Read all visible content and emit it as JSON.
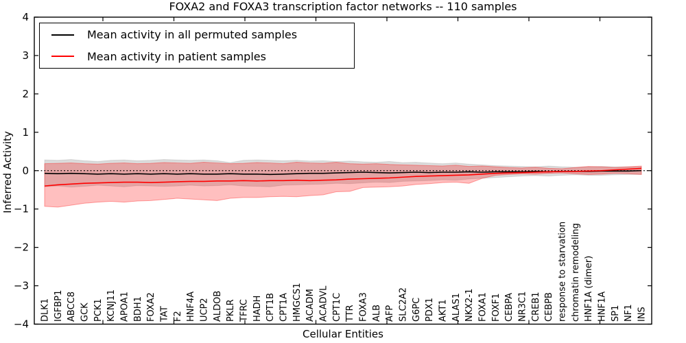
{
  "chart_data": {
    "type": "line",
    "title": "FOXA2 and FOXA3 transcription factor networks -- 110 samples",
    "xlabel": "Cellular Entities",
    "ylabel": "Inferred Activity",
    "ylim": [
      -4,
      4
    ],
    "yticks": [
      -4,
      -3,
      -2,
      -1,
      0,
      1,
      2,
      3,
      4
    ],
    "ytick_labels": [
      "−4",
      "−3",
      "−2",
      "−1",
      "0",
      "1",
      "2",
      "3",
      "4"
    ],
    "grid": false,
    "zero_reference_line": {
      "y": 0,
      "style": "dotted",
      "color": "#000000"
    },
    "legend": {
      "position": "upper left",
      "entries": [
        {
          "label": "Mean activity in all permuted samples",
          "color": "#000000"
        },
        {
          "label": "Mean activity in patient samples",
          "color": "#ff0000"
        }
      ]
    },
    "categories": [
      "DLK1",
      "IGFBP1",
      "ABCC8",
      "GCK",
      "PCK1",
      "KCNJ11",
      "APOA1",
      "BDH1",
      "FOXA2",
      "TAT",
      "F2",
      "HNF4A",
      "UCP2",
      "ALDOB",
      "PKLR",
      "TFRC",
      "HADH",
      "CPT1B",
      "CPT1A",
      "HMGCS1",
      "ACADM",
      "ACADVL",
      "CPT1C",
      "TTR",
      "FOXA3",
      "ALB",
      "AFP",
      "SLC2A2",
      "G6PC",
      "PDX1",
      "AKT1",
      "ALAS1",
      "NKX2-1",
      "FOXA1",
      "FOXF1",
      "CEBPA",
      "NR3C1",
      "CREB1",
      "CEBPB",
      "response to starvation",
      "chromatin remodeling",
      "HNF1A (dimer)",
      "HNF1A",
      "SP1",
      "NF1",
      "INS"
    ],
    "series": [
      {
        "name": "Mean activity in all permuted samples",
        "color": "#000000",
        "band_fill": "rgba(0,0,0,0.14)",
        "band_edge": "rgba(0,0,0,0.10)",
        "values": [
          -0.07,
          -0.08,
          -0.07,
          -0.08,
          -0.09,
          -0.08,
          -0.09,
          -0.08,
          -0.09,
          -0.08,
          -0.09,
          -0.08,
          -0.09,
          -0.09,
          -0.08,
          -0.09,
          -0.09,
          -0.1,
          -0.09,
          -0.08,
          -0.07,
          -0.07,
          -0.06,
          -0.05,
          -0.04,
          -0.05,
          -0.06,
          -0.05,
          -0.04,
          -0.05,
          -0.04,
          -0.04,
          -0.03,
          -0.04,
          -0.03,
          -0.03,
          -0.03,
          -0.02,
          -0.03,
          -0.02,
          -0.02,
          -0.02,
          -0.01,
          -0.01,
          -0.01,
          0.0
        ],
        "band_upper": [
          0.28,
          0.27,
          0.29,
          0.26,
          0.24,
          0.27,
          0.28,
          0.26,
          0.27,
          0.29,
          0.28,
          0.27,
          0.28,
          0.26,
          0.21,
          0.27,
          0.28,
          0.27,
          0.26,
          0.27,
          0.25,
          0.26,
          0.24,
          0.25,
          0.23,
          0.22,
          0.24,
          0.21,
          0.22,
          0.2,
          0.18,
          0.2,
          0.17,
          0.15,
          0.13,
          0.12,
          0.11,
          0.1,
          0.12,
          0.1,
          0.09,
          0.1,
          0.11,
          0.1,
          0.1,
          0.1
        ],
        "band_lower": [
          -0.42,
          -0.4,
          -0.43,
          -0.41,
          -0.38,
          -0.4,
          -0.42,
          -0.39,
          -0.4,
          -0.41,
          -0.4,
          -0.38,
          -0.4,
          -0.39,
          -0.37,
          -0.4,
          -0.41,
          -0.42,
          -0.38,
          -0.37,
          -0.36,
          -0.35,
          -0.33,
          -0.34,
          -0.32,
          -0.3,
          -0.31,
          -0.28,
          -0.27,
          -0.26,
          -0.24,
          -0.25,
          -0.22,
          -0.2,
          -0.18,
          -0.16,
          -0.14,
          -0.13,
          -0.14,
          -0.12,
          -0.11,
          -0.12,
          -0.12,
          -0.11,
          -0.1,
          -0.1
        ]
      },
      {
        "name": "Mean activity in patient samples",
        "color": "#ff0000",
        "band_fill": "rgba(255,0,0,0.25)",
        "band_edge": "rgba(255,0,0,0.35)",
        "values": [
          -0.4,
          -0.37,
          -0.35,
          -0.33,
          -0.32,
          -0.31,
          -0.3,
          -0.3,
          -0.31,
          -0.3,
          -0.29,
          -0.28,
          -0.28,
          -0.27,
          -0.27,
          -0.26,
          -0.27,
          -0.26,
          -0.26,
          -0.25,
          -0.26,
          -0.25,
          -0.24,
          -0.22,
          -0.21,
          -0.2,
          -0.19,
          -0.17,
          -0.15,
          -0.14,
          -0.13,
          -0.12,
          -0.11,
          -0.09,
          -0.07,
          -0.06,
          -0.05,
          -0.04,
          -0.03,
          -0.02,
          -0.02,
          -0.01,
          0.0,
          0.02,
          0.04,
          0.06
        ],
        "band_upper": [
          0.18,
          0.19,
          0.2,
          0.18,
          0.17,
          0.19,
          0.2,
          0.18,
          0.19,
          0.21,
          0.2,
          0.19,
          0.22,
          0.2,
          0.18,
          0.19,
          0.21,
          0.2,
          0.18,
          0.22,
          0.2,
          0.19,
          0.22,
          0.18,
          0.17,
          0.18,
          0.16,
          0.15,
          0.14,
          0.13,
          0.12,
          0.14,
          0.11,
          0.12,
          0.1,
          0.08,
          0.07,
          0.09,
          0.06,
          0.05,
          0.08,
          0.11,
          0.1,
          0.08,
          0.1,
          0.12
        ],
        "band_lower": [
          -0.93,
          -0.95,
          -0.9,
          -0.85,
          -0.82,
          -0.8,
          -0.82,
          -0.79,
          -0.78,
          -0.75,
          -0.72,
          -0.74,
          -0.76,
          -0.78,
          -0.72,
          -0.7,
          -0.7,
          -0.68,
          -0.67,
          -0.68,
          -0.65,
          -0.63,
          -0.55,
          -0.54,
          -0.44,
          -0.43,
          -0.42,
          -0.4,
          -0.36,
          -0.34,
          -0.31,
          -0.3,
          -0.33,
          -0.2,
          -0.12,
          -0.1,
          -0.08,
          -0.09,
          -0.07,
          -0.06,
          -0.08,
          -0.1,
          -0.09,
          -0.07,
          -0.08,
          -0.1
        ]
      }
    ]
  }
}
